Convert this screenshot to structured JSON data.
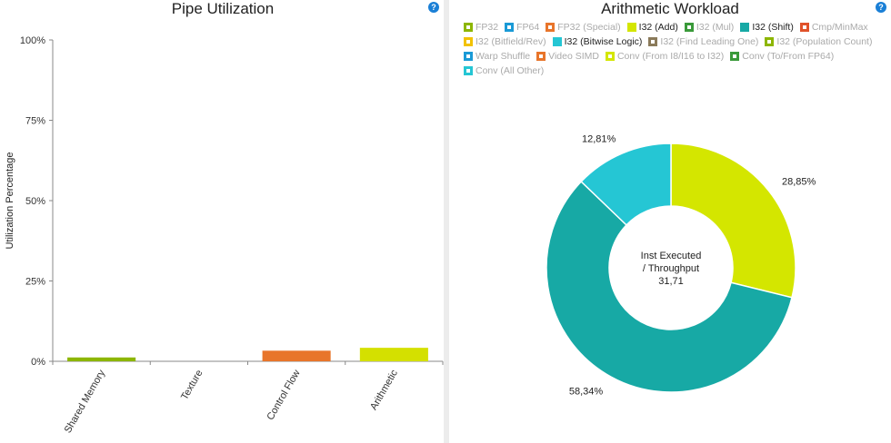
{
  "left": {
    "title": "Pipe Utilization",
    "help": "?",
    "chart_data": {
      "type": "bar",
      "title": "Pipe Utilization",
      "ylabel": "Utilization Percentage",
      "xlabel": "",
      "ylim": [
        0,
        100
      ],
      "yticks": [
        "0%",
        "25%",
        "50%",
        "75%",
        "100%"
      ],
      "ytick_values": [
        0,
        25,
        50,
        75,
        100
      ],
      "categories": [
        "Shared Memory",
        "Texture",
        "Control Flow",
        "Arithmetic"
      ],
      "values": [
        1.2,
        0,
        3.3,
        4.2
      ],
      "colors": [
        "#8db600",
        "#bbbbbb",
        "#e8752b",
        "#d4e000"
      ]
    }
  },
  "right": {
    "title": "Arithmetic Workload",
    "help": "?",
    "legend": [
      {
        "label": "FP32",
        "color": "#8db600",
        "active": false
      },
      {
        "label": "FP64",
        "color": "#1a9ad6",
        "active": false
      },
      {
        "label": "FP32 (Special)",
        "color": "#e8752b",
        "active": false
      },
      {
        "label": "I32 (Add)",
        "color": "#d4e600",
        "active": true
      },
      {
        "label": "I32 (Mul)",
        "color": "#3a9a3a",
        "active": false
      },
      {
        "label": "I32 (Shift)",
        "color": "#17a9a5",
        "active": true
      },
      {
        "label": "Cmp/MinMax",
        "color": "#e0522a",
        "active": false
      },
      {
        "label": "I32 (Bitfield/Rev)",
        "color": "#f2c200",
        "active": false
      },
      {
        "label": "I32 (Bitwise Logic)",
        "color": "#25c6d4",
        "active": true
      },
      {
        "label": "I32 (Find Leading One)",
        "color": "#8a7a5a",
        "active": false
      },
      {
        "label": "I32 (Population Count)",
        "color": "#8db600",
        "active": false
      },
      {
        "label": "Warp Shuffle",
        "color": "#1a9ad6",
        "active": false
      },
      {
        "label": "Video SIMD",
        "color": "#e8752b",
        "active": false
      },
      {
        "label": "Conv (From I8/I16 to I32)",
        "color": "#d4e600",
        "active": false
      },
      {
        "label": "Conv (To/From FP64)",
        "color": "#3a9a3a",
        "active": false
      },
      {
        "label": "Conv (All Other)",
        "color": "#25c6d4",
        "active": false
      }
    ],
    "chart_data": {
      "type": "pie",
      "title": "Arithmetic Workload",
      "labels": [
        "I32 (Add)",
        "I32 (Shift)",
        "I32 (Bitwise Logic)"
      ],
      "values": [
        28.85,
        58.34,
        12.81
      ],
      "value_labels": [
        "28,85%",
        "58,34%",
        "12,81%"
      ],
      "colors": [
        "#d4e600",
        "#17a9a5",
        "#25c6d4"
      ],
      "center_text": [
        "Inst Executed",
        "/ Throughput",
        "31,71"
      ]
    }
  }
}
